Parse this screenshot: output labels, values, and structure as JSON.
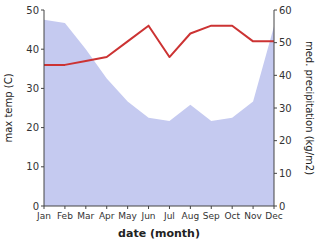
{
  "chart_data": {
    "type": "line",
    "x_label": "date (month)",
    "y_label": "max temp (C)",
    "y2_label": "med. precipitation (kg/m2)",
    "categories": [
      "Jan",
      "Feb",
      "Mar",
      "Apr",
      "May",
      "Jun",
      "Jul",
      "Aug",
      "Sep",
      "Oct",
      "Nov",
      "Dec"
    ],
    "series": [
      {
        "type": "area",
        "axis": "y2",
        "color": "#c5caf0",
        "values": [
          57,
          56,
          48,
          39,
          32,
          27,
          26,
          31,
          26,
          27,
          32,
          55
        ]
      },
      {
        "type": "line",
        "color": "#cc3333",
        "values": [
          36,
          36,
          37,
          38,
          42,
          46,
          38,
          44,
          46,
          46,
          42,
          42
        ]
      }
    ],
    "ylim": [
      0,
      50
    ],
    "yticks": [
      0,
      10,
      20,
      30,
      40,
      50
    ],
    "y2lim": [
      0,
      60
    ],
    "y2ticks": [
      0,
      10,
      20,
      30,
      40,
      50,
      60
    ],
    "grid": false
  }
}
